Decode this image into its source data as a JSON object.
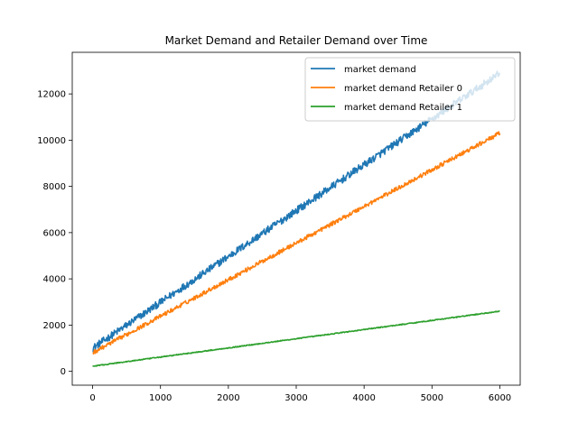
{
  "chart_data": {
    "type": "line",
    "title": "Market Demand and Retailer Demand over Time",
    "xlabel": "",
    "ylabel": "",
    "xlim": [
      -300,
      6300
    ],
    "ylim": [
      -600,
      13800
    ],
    "x_ticks": [
      0,
      1000,
      2000,
      3000,
      4000,
      5000,
      6000
    ],
    "y_ticks": [
      0,
      2000,
      4000,
      6000,
      8000,
      10000,
      12000
    ],
    "x_range": [
      0,
      6000
    ],
    "grid": false,
    "legend_position": "top-right",
    "series": [
      {
        "name": "market demand",
        "color": "#1f77b4",
        "start": 1000,
        "end": 12900,
        "noise": 160
      },
      {
        "name": "market demand Retailer 0",
        "color": "#ff7f0e",
        "start": 800,
        "end": 10300,
        "noise": 90
      },
      {
        "name": "market demand Retailer 1",
        "color": "#2ca02c",
        "start": 220,
        "end": 2600,
        "noise": 20
      }
    ]
  }
}
